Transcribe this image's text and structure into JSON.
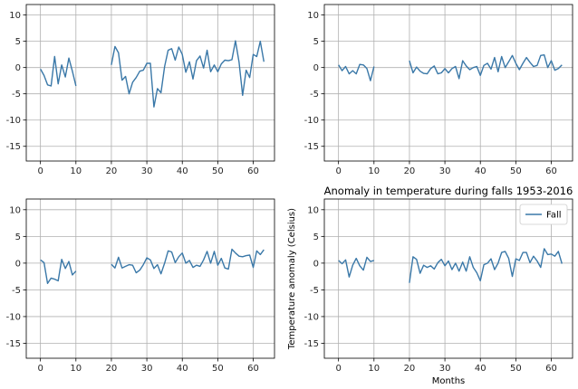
{
  "chart_data": [
    {
      "type": "line",
      "title": "",
      "xlabel": "",
      "ylabel": "",
      "xlim": [
        -4,
        66
      ],
      "ylim": [
        -17.8,
        12
      ],
      "xticks": [
        0,
        10,
        20,
        30,
        40,
        50,
        60
      ],
      "yticks": [
        -15,
        -10,
        -5,
        0,
        5,
        10
      ],
      "grid": true,
      "legend": null,
      "color": "#3a78a8",
      "series": [
        {
          "name": "",
          "segments": [
            {
              "x": [
                0,
                1,
                2,
                3,
                4,
                5,
                6,
                7,
                8,
                9,
                10
              ],
              "y": [
                -0.3,
                -1.5,
                -3.3,
                -3.5,
                2.1,
                -3.1,
                0.5,
                -1.8,
                1.8,
                -0.7,
                -3.5
              ]
            },
            {
              "x": [
                20,
                21,
                22,
                23,
                24,
                25,
                26,
                27,
                28,
                29,
                30,
                31,
                32,
                33,
                34,
                35,
                36,
                37,
                38,
                39,
                40,
                41,
                42,
                43,
                44,
                45,
                46,
                47,
                48,
                49,
                50,
                51,
                52,
                53,
                54,
                55,
                56,
                57,
                58,
                59,
                60,
                61,
                62,
                63
              ],
              "y": [
                0.5,
                4.0,
                2.8,
                -2.4,
                -1.7,
                -5.0,
                -2.8,
                -1.9,
                -0.7,
                -0.5,
                0.8,
                0.8,
                -7.5,
                -4.0,
                -4.8,
                0.2,
                3.3,
                3.6,
                1.4,
                3.9,
                2.5,
                -0.9,
                1.1,
                -2.2,
                1.3,
                2.2,
                -0.1,
                3.3,
                -0.8,
                0.5,
                -0.8,
                0.7,
                1.4,
                1.3,
                1.5,
                5.1,
                1.0,
                -5.3,
                -0.5,
                -1.9,
                2.5,
                2.1,
                5.0,
                1.1
              ]
            }
          ]
        }
      ]
    },
    {
      "type": "line",
      "title": "",
      "xlabel": "",
      "ylabel": "",
      "xlim": [
        -4,
        66
      ],
      "ylim": [
        -17.8,
        12
      ],
      "xticks": [
        0,
        10,
        20,
        30,
        40,
        50,
        60
      ],
      "yticks": [
        -15,
        -10,
        -5,
        0,
        5,
        10
      ],
      "grid": true,
      "legend": null,
      "color": "#3a78a8",
      "series": [
        {
          "name": "",
          "segments": [
            {
              "x": [
                0,
                1,
                2,
                3,
                4,
                5,
                6,
                7,
                8,
                9,
                10
              ],
              "y": [
                0.5,
                -0.6,
                0.2,
                -1.2,
                -0.6,
                -1.2,
                0.6,
                0.5,
                -0.2,
                -2.5,
                0.2
              ]
            },
            {
              "x": [
                20,
                21,
                22,
                23,
                24,
                25,
                26,
                27,
                28,
                29,
                30,
                31,
                32,
                33,
                34,
                35,
                36,
                37,
                38,
                39,
                40,
                41,
                42,
                43,
                44,
                45,
                46,
                47,
                48,
                49,
                50,
                51,
                52,
                53,
                54,
                55,
                56,
                57,
                58,
                59,
                60,
                61,
                62,
                63
              ],
              "y": [
                1.3,
                -1.0,
                0.1,
                -0.7,
                -1.1,
                -1.2,
                -0.2,
                0.3,
                -1.2,
                -1.0,
                -0.2,
                -1.0,
                -0.2,
                0.2,
                -2.1,
                1.3,
                0.3,
                -0.4,
                0.0,
                0.2,
                -1.5,
                0.4,
                0.8,
                -0.3,
                1.9,
                -0.8,
                2.1,
                0.0,
                1.1,
                2.3,
                0.8,
                -0.4,
                0.8,
                1.9,
                1.0,
                0.2,
                0.4,
                2.3,
                2.4,
                0.0,
                1.3,
                -0.5,
                -0.2,
                0.5
              ]
            }
          ]
        }
      ]
    },
    {
      "type": "line",
      "title": "",
      "xlabel": "",
      "ylabel": "",
      "xlim": [
        -4,
        66
      ],
      "ylim": [
        -17.8,
        12
      ],
      "xticks": [
        0,
        10,
        20,
        30,
        40,
        50,
        60
      ],
      "yticks": [
        -15,
        -10,
        -5,
        0,
        5,
        10
      ],
      "grid": true,
      "legend": null,
      "color": "#3a78a8",
      "series": [
        {
          "name": "",
          "segments": [
            {
              "x": [
                0,
                1,
                2,
                3,
                4,
                5,
                6,
                7,
                8,
                9,
                10
              ],
              "y": [
                0.6,
                0.1,
                -3.8,
                -2.8,
                -3.0,
                -3.3,
                0.7,
                -1.0,
                0.3,
                -2.2,
                -1.5
              ]
            },
            {
              "x": [
                20,
                21,
                22,
                23,
                24,
                25,
                26,
                27,
                28,
                29,
                30,
                31,
                32,
                33,
                34,
                35,
                36,
                37,
                38,
                39,
                40,
                41,
                42,
                43,
                44,
                45,
                46,
                47,
                48,
                49,
                50,
                51,
                52,
                53,
                54,
                55,
                56,
                57,
                58,
                59,
                60,
                61,
                62,
                63
              ],
              "y": [
                -0.2,
                -0.9,
                1.1,
                -0.9,
                -0.6,
                -0.3,
                -0.4,
                -1.8,
                -1.3,
                -0.3,
                1.0,
                0.6,
                -1.0,
                -0.3,
                -2.0,
                0.0,
                2.3,
                2.1,
                0.1,
                1.2,
                1.9,
                0.0,
                0.5,
                -0.8,
                -0.4,
                -0.6,
                0.6,
                2.2,
                0.0,
                2.2,
                -0.4,
                0.9,
                -0.9,
                -1.1,
                2.6,
                1.9,
                1.3,
                1.2,
                1.4,
                1.5,
                -0.8,
                2.3,
                1.6,
                2.5
              ]
            }
          ]
        }
      ]
    },
    {
      "type": "line",
      "title": "Anomaly in temperature during falls 1953-2016",
      "xlabel": "Months",
      "ylabel": "Temperature anomaly (Celsius)",
      "xlim": [
        -4,
        66
      ],
      "ylim": [
        -17.8,
        12
      ],
      "xticks": [
        0,
        10,
        20,
        30,
        40,
        50,
        60
      ],
      "yticks": [
        -15,
        -10,
        -5,
        0,
        5,
        10
      ],
      "grid": true,
      "legend": "top-right",
      "color": "#3a78a8",
      "series": [
        {
          "name": "Fall",
          "segments": [
            {
              "x": [
                0,
                1,
                2,
                3,
                4,
                5,
                6,
                7,
                8,
                9,
                10
              ],
              "y": [
                0.5,
                -0.1,
                0.6,
                -2.6,
                -0.4,
                0.9,
                -0.5,
                -1.3,
                1.1,
                0.3,
                0.5
              ]
            },
            {
              "x": [
                20,
                21,
                22,
                23,
                24,
                25,
                26,
                27,
                28,
                29,
                30,
                31,
                32,
                33,
                34,
                35,
                36,
                37,
                38,
                39,
                40,
                41,
                42,
                43,
                44,
                45,
                46,
                47,
                48,
                49,
                50,
                51,
                52,
                53,
                54,
                55,
                56,
                57,
                58,
                59,
                60,
                61,
                62,
                63
              ],
              "y": [
                -3.7,
                1.2,
                0.7,
                -1.9,
                -0.4,
                -0.8,
                -0.5,
                -1.1,
                0.1,
                0.7,
                -0.5,
                0.4,
                -1.2,
                0.0,
                -1.5,
                0.2,
                -1.5,
                1.2,
                -0.8,
                -1.8,
                -3.3,
                -0.3,
                0.0,
                0.8,
                -1.2,
                0.0,
                2.0,
                2.2,
                0.9,
                -2.5,
                0.8,
                0.5,
                2.0,
                2.0,
                0.1,
                1.3,
                0.4,
                -0.8,
                2.7,
                1.6,
                1.7,
                1.3,
                2.2,
                -0.1
              ]
            }
          ]
        }
      ]
    }
  ]
}
